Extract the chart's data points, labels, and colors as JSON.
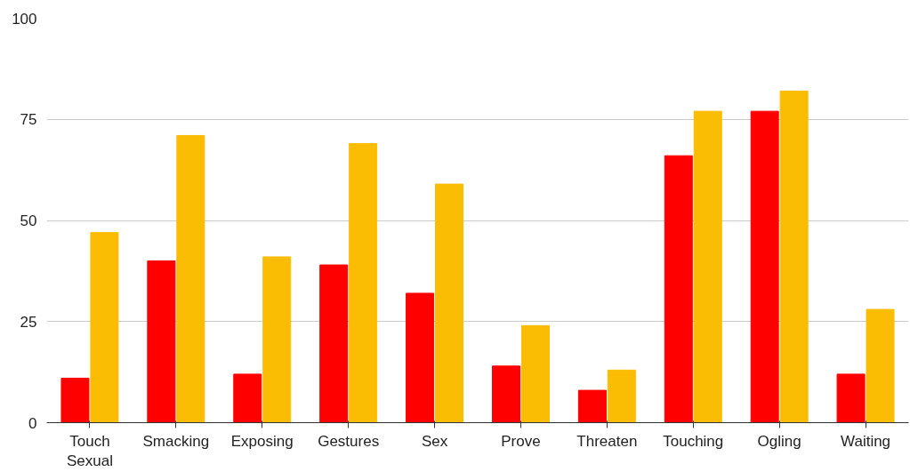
{
  "chart_data": {
    "type": "bar",
    "categories": [
      "Touch Sexual",
      "Smacking",
      "Exposing",
      "Gestures",
      "Sex",
      "Prove",
      "Threaten",
      "Touching",
      "Ogling",
      "Waiting"
    ],
    "series": [
      {
        "color": "#ff0000",
        "values": [
          11,
          40,
          12,
          39,
          32,
          14,
          8,
          66,
          77,
          12
        ]
      },
      {
        "color": "#fbbc04",
        "values": [
          47,
          71,
          41,
          69,
          59,
          24,
          13,
          77,
          82,
          28
        ]
      }
    ],
    "ylim": [
      0,
      100
    ],
    "yticks": [
      0,
      25,
      50,
      75,
      100
    ],
    "grid": "y"
  }
}
